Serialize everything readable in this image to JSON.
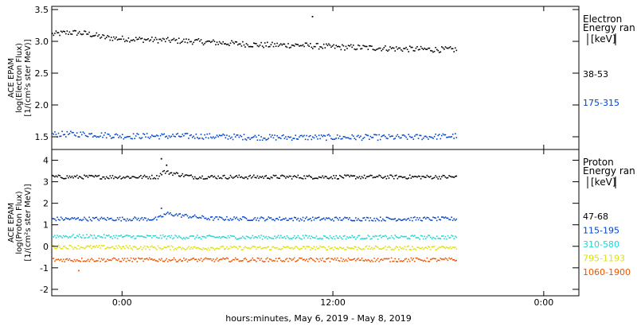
{
  "chart_data": {
    "type": "scatter",
    "xlabel": "hours:minutes, May  6, 2019 - May  8, 2019",
    "x_tick_labels": [
      "0:00",
      "12:00",
      "0:00"
    ],
    "x_ticks_hours": [
      0,
      12,
      24
    ],
    "xlim_hours": [
      -4.0,
      26.0
    ],
    "data_end_hour": 19.0,
    "panels": [
      {
        "name": "electron",
        "ylabel_lines": [
          "ACE EPAM",
          "log(Electron Flux)",
          "[1/(cm²s ster MeV)]"
        ],
        "ylim": [
          1.3,
          3.55
        ],
        "y_ticks": [
          1.5,
          2.0,
          2.5,
          3.0,
          3.5
        ],
        "y_tick_labels": [
          "1.5",
          "2.0",
          "2.5",
          "3.0",
          "3.5"
        ],
        "legend_title": [
          "Electron",
          "Energy ran",
          "[keV]"
        ],
        "series": [
          {
            "name": "38-53",
            "color": "#000000",
            "x": [
              -4.0,
              -3.0,
              -2.0,
              -1.0,
              0.0,
              2.0,
              4.0,
              6.0,
              8.0,
              10.0,
              12.0,
              14.0,
              16.0,
              18.0,
              19.0
            ],
            "y": [
              3.12,
              3.15,
              3.13,
              3.07,
              3.05,
              3.03,
              3.01,
              2.98,
              2.95,
              2.95,
              2.92,
              2.91,
              2.89,
              2.88,
              2.88
            ],
            "spikes": [
              {
                "x": 10.8,
                "y": 3.4
              }
            ]
          },
          {
            "name": "175-315",
            "color": "#0044cc",
            "x": [
              -4.0,
              -2.0,
              0.0,
              4.0,
              8.0,
              12.0,
              16.0,
              19.0
            ],
            "y": [
              1.55,
              1.55,
              1.52,
              1.52,
              1.5,
              1.5,
              1.5,
              1.52
            ],
            "spikes": []
          }
        ]
      },
      {
        "name": "proton",
        "ylabel_lines": [
          "ACE EPAM",
          "log(Proton Flux)",
          "[1/(cm²s ster MeV)]"
        ],
        "ylim": [
          -2.3,
          4.5
        ],
        "y_ticks": [
          -2,
          -1,
          0,
          1,
          2,
          3,
          4
        ],
        "y_tick_labels": [
          "-2",
          "-1",
          "0",
          "1",
          "2",
          "3",
          "4"
        ],
        "legend_title": [
          "Proton",
          "Energy ran",
          "[keV]"
        ],
        "series": [
          {
            "name": "47-68",
            "color": "#000000",
            "x": [
              -4.0,
              2.0,
              2.3,
              3.0,
              4.0,
              8.0,
              12.0,
              16.0,
              19.0
            ],
            "y": [
              3.25,
              3.25,
              3.5,
              3.4,
              3.25,
              3.25,
              3.25,
              3.25,
              3.25
            ],
            "spikes": [
              {
                "x": 2.2,
                "y": 4.1
              },
              {
                "x": 2.5,
                "y": 3.8
              }
            ]
          },
          {
            "name": "115-195",
            "color": "#0044cc",
            "x": [
              -4.0,
              2.0,
              2.5,
              3.5,
              5.0,
              10.0,
              16.0,
              19.0
            ],
            "y": [
              1.3,
              1.3,
              1.55,
              1.45,
              1.32,
              1.3,
              1.3,
              1.3
            ],
            "spikes": [
              {
                "x": 2.2,
                "y": 1.8
              }
            ]
          },
          {
            "name": "310-580",
            "color": "#22d4d4",
            "x": [
              -4.0,
              4.0,
              10.0,
              16.0,
              19.0
            ],
            "y": [
              0.5,
              0.45,
              0.45,
              0.45,
              0.45
            ],
            "spikes": []
          },
          {
            "name": "795-1193",
            "color": "#e0e000",
            "x": [
              -4.0,
              4.0,
              10.0,
              16.0,
              19.0
            ],
            "y": [
              0.0,
              -0.05,
              -0.05,
              -0.05,
              -0.05
            ],
            "spikes": []
          },
          {
            "name": "1060-1900",
            "color": "#ee5500",
            "x": [
              -4.0,
              4.0,
              10.0,
              16.0,
              19.0
            ],
            "y": [
              -0.6,
              -0.6,
              -0.6,
              -0.6,
              -0.6
            ],
            "spikes": [
              {
                "x": -2.5,
                "y": -1.1
              }
            ]
          }
        ]
      }
    ]
  }
}
